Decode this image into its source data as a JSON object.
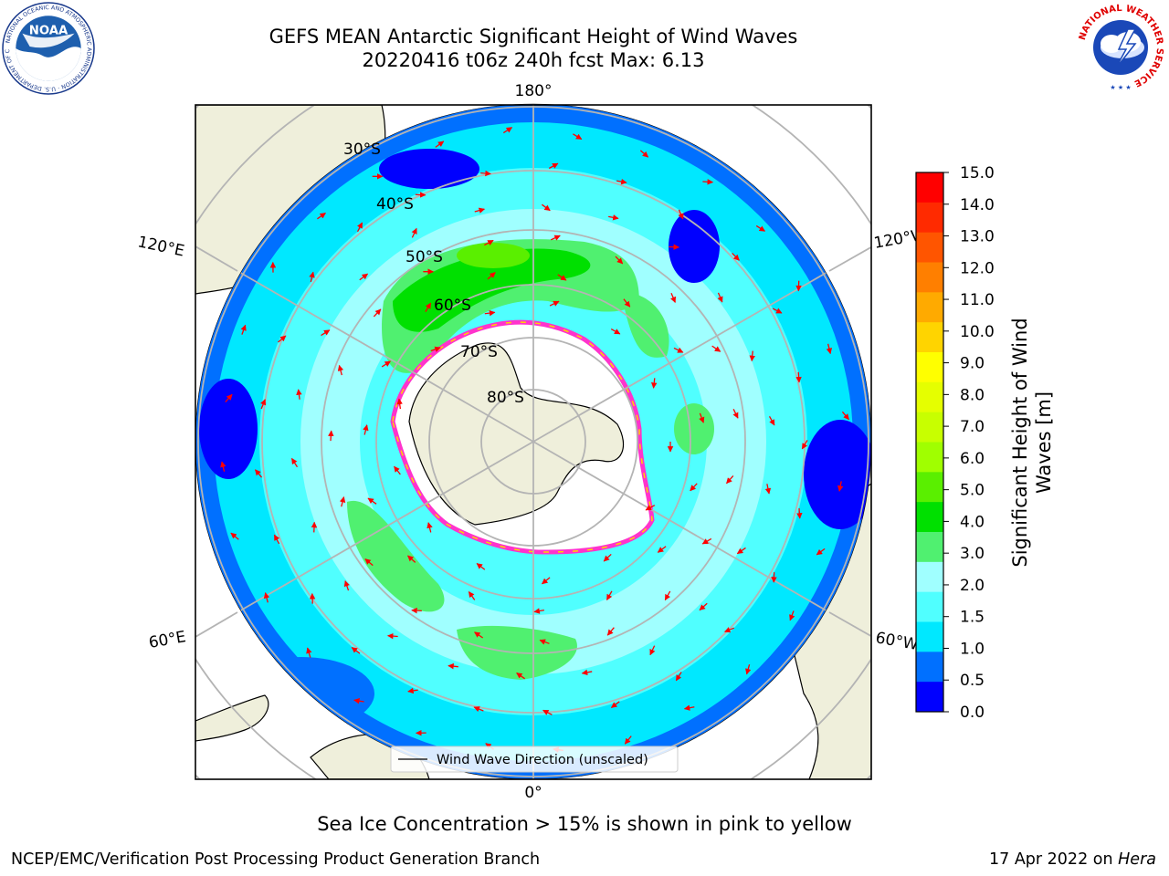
{
  "title_line1": "GEFS MEAN Antarctic Significant Height of Wind Waves",
  "title_line2": "20220416 t06z 240h fcst   Max: 6.13",
  "lon_labels": {
    "top": "180°",
    "bottom": "0°",
    "upper_left": "120°E",
    "upper_right": "120°W",
    "lower_left": "60°E",
    "lower_right": "60°W"
  },
  "lat_labels": [
    "30°S",
    "40°S",
    "50°S",
    "60°S",
    "70°S",
    "80°S"
  ],
  "legend_label": "Wind Wave Direction (unscaled)",
  "colorbar": {
    "label": "Significant Height of Wind Waves [m]",
    "label_line1": "Significant Height of Wind",
    "label_line2": "Waves [m]",
    "ticks": [
      "15.0",
      "14.0",
      "13.0",
      "12.0",
      "11.0",
      "10.0",
      "9.0",
      "8.0",
      "7.0",
      "6.0",
      "5.0",
      "4.0",
      "3.0",
      "2.0",
      "1.5",
      "1.0",
      "0.5",
      "0.0"
    ],
    "colors": [
      "#ff0000",
      "#ff2a00",
      "#ff5500",
      "#ff7f00",
      "#ffaa00",
      "#ffd400",
      "#ffff00",
      "#e5ff00",
      "#c8ff00",
      "#a0ff00",
      "#5aef00",
      "#00e000",
      "#50f070",
      "#a0ffff",
      "#50ffff",
      "#00e8ff",
      "#0070ff",
      "#0000ff"
    ]
  },
  "sea_ice_note": "Sea Ice Concentration > 15% is shown in pink to yellow",
  "footer_left": "NCEP/EMC/Verification Post Processing Product Generation Branch",
  "footer_right_prefix": "17 Apr 2022 on ",
  "footer_right_machine": "Hera",
  "logos": {
    "noaa_text": "NOAA",
    "noaa_ring": "NATIONAL OCEANIC AND ATMOSPHERIC ADMINISTRATION · U.S. DEPARTMENT OF COMMERCE",
    "nws_ring": "NATIONAL WEATHER SERVICE"
  }
}
